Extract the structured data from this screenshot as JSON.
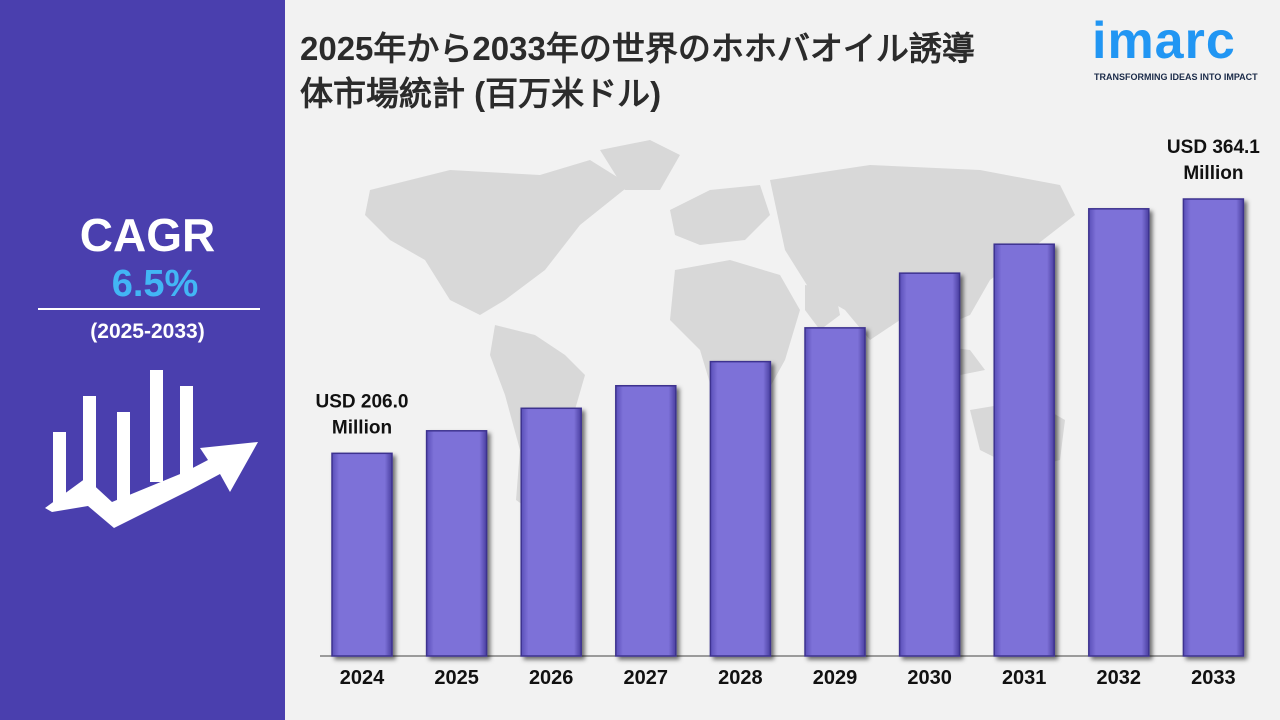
{
  "title_lines": [
    "2025年から2033年の世界のホホバオイル誘導",
    "体市場統計 (百万米ドル)"
  ],
  "logo": {
    "wordmark": "imarc",
    "tagline": "TRANSFORMING IDEAS INTO IMPACT",
    "color": "#2196f3"
  },
  "sidebar": {
    "cagr_label": "CAGR",
    "cagr_value": "6.5%",
    "period": "(2025-2033)",
    "background": "#4a3fae",
    "icon": "growth-chart-arrow-icon"
  },
  "chart_data": {
    "type": "bar",
    "title": "2025年から2033年の世界のホホバオイル誘導体市場統計 (百万米ドル)",
    "categories": [
      "2024",
      "2025",
      "2026",
      "2027",
      "2028",
      "2029",
      "2030",
      "2031",
      "2032",
      "2033"
    ],
    "values": [
      206.0,
      220.0,
      234.0,
      248.0,
      263.0,
      284.0,
      318.0,
      336.0,
      358.0,
      364.1
    ],
    "ylim": [
      80,
      400
    ],
    "grid": false,
    "annotations": [
      {
        "index": 0,
        "lines": [
          "USD 206.0",
          "Million"
        ]
      },
      {
        "index": 9,
        "lines": [
          "USD 364.1",
          "Million"
        ]
      }
    ],
    "bar_color": "#7d71d8"
  }
}
